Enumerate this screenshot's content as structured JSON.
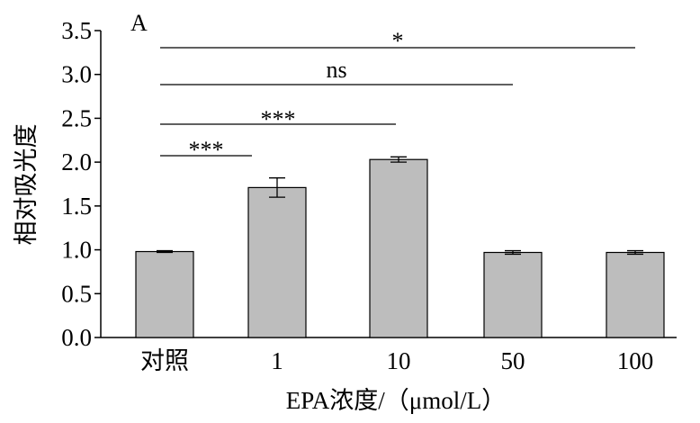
{
  "chart_data": {
    "type": "bar",
    "panel_label": "A",
    "categories": [
      "对照",
      "1",
      "10",
      "50",
      "100"
    ],
    "values": [
      0.98,
      1.71,
      2.03,
      0.97,
      0.97
    ],
    "errors": [
      0.01,
      0.11,
      0.03,
      0.02,
      0.02
    ],
    "ylim": [
      0,
      3.5
    ],
    "yticks": [
      "0.0",
      "0.5",
      "1.0",
      "1.5",
      "2.0",
      "2.5",
      "3.0",
      "3.5"
    ],
    "ylabel": "相对吸光度",
    "xlabel": "EPA浓度/（μmol/L）",
    "bar_color": "#bdbdbd",
    "significance": [
      {
        "from": 0,
        "to": 1,
        "label": "***"
      },
      {
        "from": 0,
        "to": 2,
        "label": "***"
      },
      {
        "from": 0,
        "to": 3,
        "label": "ns"
      },
      {
        "from": 0,
        "to": 4,
        "label": "*"
      }
    ]
  }
}
